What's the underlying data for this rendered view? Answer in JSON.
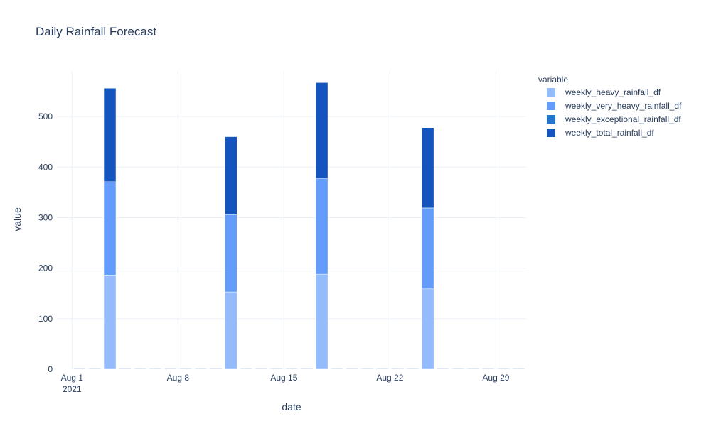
{
  "chart_data": {
    "type": "bar",
    "title": "Daily Rainfall Forecast",
    "xlabel": "date",
    "ylabel": "value",
    "xlim": [
      "2021-07-31",
      "2021-08-31"
    ],
    "ylim": [
      0,
      590
    ],
    "y_ticks": [
      0,
      100,
      200,
      300,
      400,
      500
    ],
    "x_ticks": [
      {
        "date": "2021-08-01",
        "label": "Aug 1",
        "sublabel": "2021"
      },
      {
        "date": "2021-08-08",
        "label": "Aug 8",
        "sublabel": ""
      },
      {
        "date": "2021-08-15",
        "label": "Aug 15",
        "sublabel": ""
      },
      {
        "date": "2021-08-22",
        "label": "Aug 22",
        "sublabel": ""
      },
      {
        "date": "2021-08-29",
        "label": "Aug 29",
        "sublabel": ""
      }
    ],
    "barmode": "stack",
    "grid": true,
    "legend": {
      "title": "variable",
      "position": "top-right"
    },
    "x": [
      "2021-08-01",
      "2021-08-02",
      "2021-08-03",
      "2021-08-04",
      "2021-08-05",
      "2021-08-06",
      "2021-08-07",
      "2021-08-08",
      "2021-08-09",
      "2021-08-10",
      "2021-08-11",
      "2021-08-12",
      "2021-08-13",
      "2021-08-14",
      "2021-08-15",
      "2021-08-16",
      "2021-08-17",
      "2021-08-18",
      "2021-08-19",
      "2021-08-20",
      "2021-08-21",
      "2021-08-22",
      "2021-08-23",
      "2021-08-24",
      "2021-08-25",
      "2021-08-26",
      "2021-08-27",
      "2021-08-28",
      "2021-08-29",
      "2021-08-30"
    ],
    "series": [
      {
        "name": "weekly_heavy_rainfall_df",
        "color": "#94bbfc",
        "values": [
          0,
          0,
          185,
          0,
          0,
          0,
          0,
          0,
          0,
          0,
          153,
          0,
          0,
          0,
          0,
          0,
          188,
          0,
          0,
          0,
          0,
          0,
          0,
          159,
          0,
          0,
          0,
          0,
          0,
          0
        ]
      },
      {
        "name": "weekly_very_heavy_rainfall_df",
        "color": "#639cfb",
        "values": [
          0,
          0,
          186,
          0,
          0,
          0,
          0,
          0,
          0,
          0,
          153,
          0,
          0,
          0,
          0,
          0,
          190,
          0,
          0,
          0,
          0,
          0,
          0,
          160,
          0,
          0,
          0,
          0,
          0,
          0
        ]
      },
      {
        "name": "weekly_exceptional_rainfall_df",
        "color": "#1f75d0",
        "values": [
          0,
          0,
          0,
          0,
          0,
          0,
          0,
          0,
          0,
          0,
          0,
          0,
          0,
          0,
          0,
          0,
          0,
          0,
          0,
          0,
          0,
          0,
          0,
          0,
          0,
          0,
          0,
          0,
          0,
          0
        ]
      },
      {
        "name": "weekly_total_rainfall_df",
        "color": "#1454bf",
        "values": [
          0,
          0,
          185,
          0,
          0,
          0,
          0,
          0,
          0,
          0,
          154,
          0,
          0,
          0,
          0,
          0,
          189,
          0,
          0,
          0,
          0,
          0,
          0,
          159,
          0,
          0,
          0,
          0,
          0,
          0
        ]
      }
    ]
  }
}
